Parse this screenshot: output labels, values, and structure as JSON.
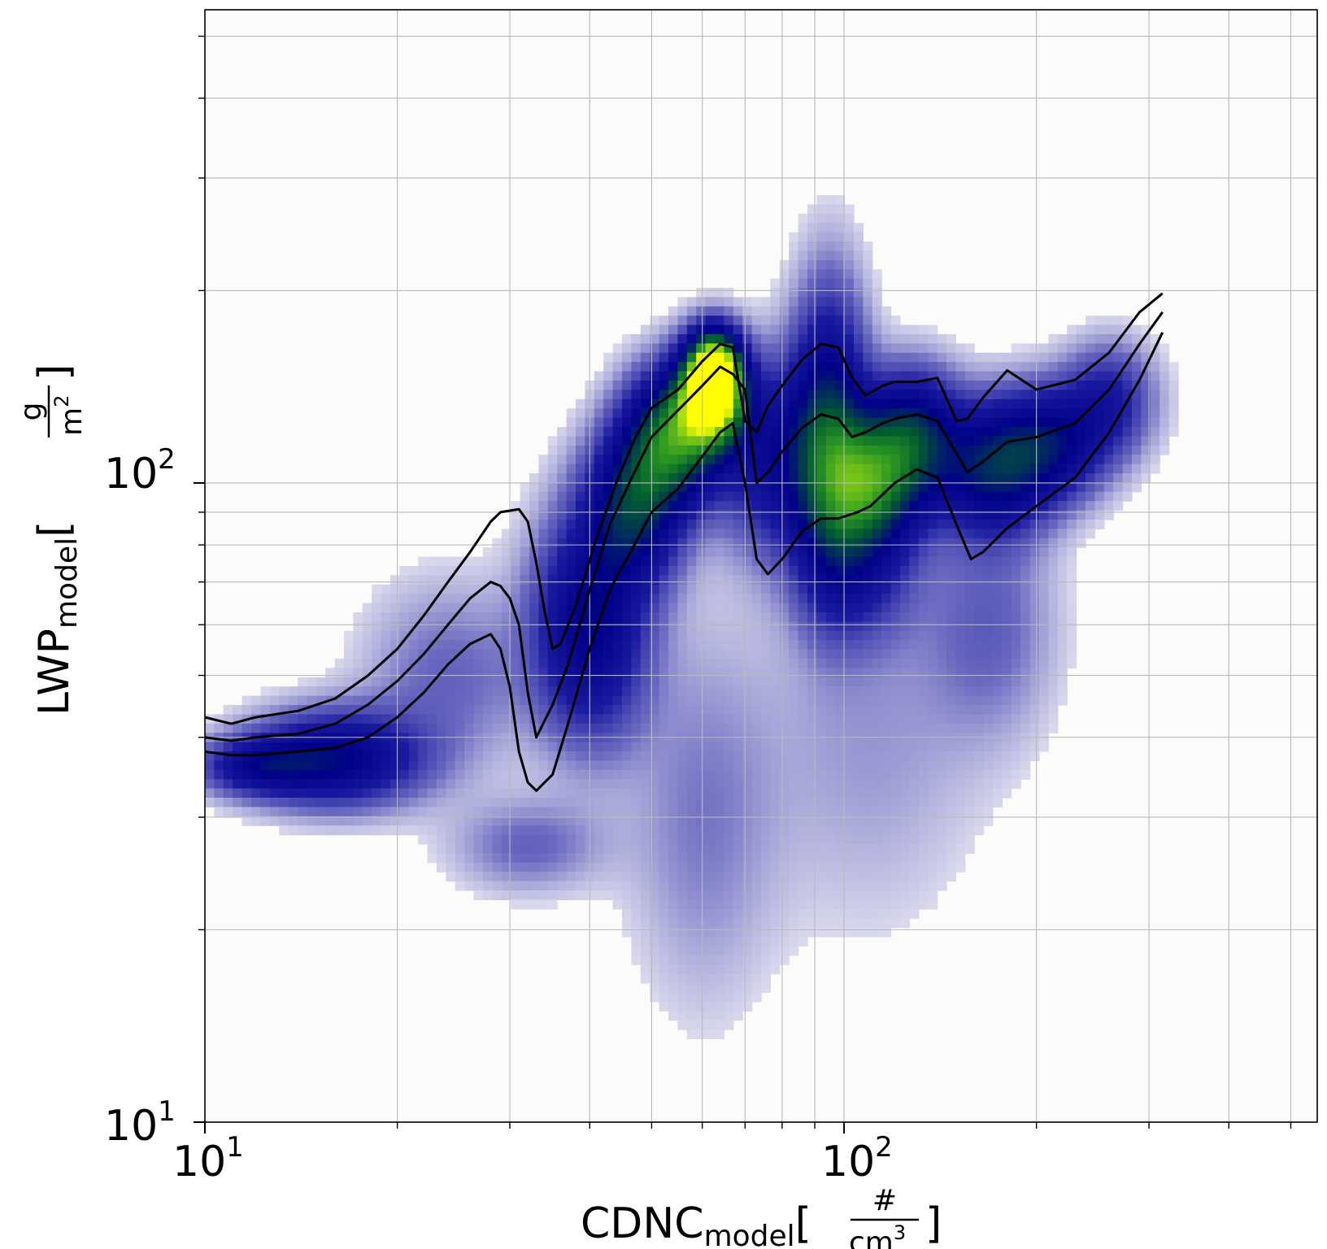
{
  "chart_data": {
    "type": "heatmap",
    "title": "",
    "xlabel": {
      "base": "CDNC",
      "subscript": "model",
      "unit_numerator": "#",
      "unit_denominator": "cm",
      "unit_denominator_exp": "3"
    },
    "ylabel": {
      "base": "LWP",
      "subscript": "model",
      "unit_numerator": "g",
      "unit_denominator": "m",
      "unit_denominator_exp": "2"
    },
    "x_scale": "log",
    "y_scale": "log",
    "xlim": [
      10,
      550
    ],
    "ylim": [
      10,
      550
    ],
    "grid": true,
    "x_ticks": [
      {
        "value": 10,
        "base": "10",
        "exp": "1"
      },
      {
        "value": 100,
        "base": "10",
        "exp": "2"
      }
    ],
    "y_ticks": [
      {
        "value": 10,
        "base": "10",
        "exp": "1"
      },
      {
        "value": 100,
        "base": "10",
        "exp": "2"
      }
    ],
    "colormap": [
      "#fdfafa",
      "#c8c8e6",
      "#6a6ac0",
      "#1a1aa0",
      "#000088",
      "#005a30",
      "#2e9a22",
      "#8ccf14",
      "#ffff00"
    ],
    "density_blobs": [
      {
        "x": 16,
        "y": 37,
        "sx": 0.09,
        "sy": 0.05,
        "w": 0.9
      },
      {
        "x": 12,
        "y": 36,
        "sx": 0.06,
        "sy": 0.03,
        "w": 0.6
      },
      {
        "x": 24,
        "y": 50,
        "sx": 0.09,
        "sy": 0.1,
        "w": 0.25
      },
      {
        "x": 40,
        "y": 60,
        "sx": 0.06,
        "sy": 0.12,
        "w": 0.9
      },
      {
        "x": 47,
        "y": 92,
        "sx": 0.05,
        "sy": 0.08,
        "w": 1.0
      },
      {
        "x": 54,
        "y": 118,
        "sx": 0.05,
        "sy": 0.07,
        "w": 1.4
      },
      {
        "x": 62,
        "y": 138,
        "sx": 0.035,
        "sy": 0.055,
        "w": 2.2
      },
      {
        "x": 63,
        "y": 150,
        "sx": 0.025,
        "sy": 0.04,
        "w": 1.5
      },
      {
        "x": 78,
        "y": 110,
        "sx": 0.06,
        "sy": 0.1,
        "w": 0.7
      },
      {
        "x": 95,
        "y": 120,
        "sx": 0.04,
        "sy": 0.15,
        "w": 1.0
      },
      {
        "x": 110,
        "y": 100,
        "sx": 0.05,
        "sy": 0.07,
        "w": 1.2
      },
      {
        "x": 128,
        "y": 118,
        "sx": 0.05,
        "sy": 0.07,
        "w": 1.0
      },
      {
        "x": 105,
        "y": 75,
        "sx": 0.06,
        "sy": 0.08,
        "w": 0.5
      },
      {
        "x": 170,
        "y": 105,
        "sx": 0.06,
        "sy": 0.07,
        "w": 0.9
      },
      {
        "x": 210,
        "y": 115,
        "sx": 0.06,
        "sy": 0.06,
        "w": 0.8
      },
      {
        "x": 260,
        "y": 135,
        "sx": 0.05,
        "sy": 0.06,
        "w": 0.5
      },
      {
        "x": 32,
        "y": 27,
        "sx": 0.08,
        "sy": 0.05,
        "w": 0.25
      },
      {
        "x": 60,
        "y": 30,
        "sx": 0.08,
        "sy": 0.2,
        "w": 0.2
      },
      {
        "x": 110,
        "y": 40,
        "sx": 0.12,
        "sy": 0.2,
        "w": 0.15
      },
      {
        "x": 170,
        "y": 60,
        "sx": 0.07,
        "sy": 0.12,
        "w": 0.25
      }
    ],
    "series": [
      {
        "x": [
          10,
          11,
          12,
          14,
          16,
          18,
          20,
          22,
          24,
          26,
          28,
          29,
          31,
          32,
          33,
          34,
          35,
          36,
          38,
          41,
          44,
          47,
          50,
          55,
          60,
          64,
          67,
          70,
          73,
          76,
          80,
          86,
          92,
          98,
          103,
          108,
          115,
          120,
          130,
          140,
          150,
          156,
          165,
          180,
          200,
          230,
          260,
          290,
          315
        ],
        "y": [
          43,
          42,
          43,
          44,
          46,
          50,
          55,
          62,
          70,
          78,
          87,
          90,
          91,
          87,
          75,
          63,
          55,
          56,
          64,
          82,
          100,
          117,
          131,
          140,
          155,
          165,
          163,
          125,
          120,
          132,
          142,
          156,
          165,
          163,
          146,
          137,
          142,
          144,
          144,
          146,
          125,
          126,
          136,
          150,
          140,
          145,
          160,
          185,
          198
        ]
      },
      {
        "x": [
          10,
          11,
          12,
          14,
          16,
          18,
          20,
          22,
          24,
          26,
          28,
          29,
          30,
          31,
          32,
          33,
          35,
          37,
          40,
          43,
          47,
          50,
          55,
          60,
          64,
          67,
          70,
          73,
          76,
          80,
          86,
          92,
          98,
          103,
          108,
          115,
          120,
          130,
          140,
          156,
          165,
          180,
          200,
          230,
          260,
          290,
          315
        ],
        "y": [
          40,
          39.5,
          40,
          40.5,
          42,
          45,
          49,
          54,
          60,
          66,
          70,
          69,
          66,
          60,
          47,
          40,
          45,
          52,
          68,
          86,
          104,
          118,
          130,
          142,
          152,
          148,
          140,
          100,
          104,
          112,
          122,
          128,
          126,
          118,
          120,
          124,
          126,
          128,
          125,
          104,
          108,
          116,
          118,
          124,
          140,
          165,
          185
        ]
      },
      {
        "x": [
          10,
          11,
          12,
          14,
          16,
          18,
          20,
          22,
          24,
          26,
          28,
          29,
          30,
          31,
          32,
          33,
          35,
          37,
          40,
          43,
          47,
          50,
          55,
          60,
          64,
          67,
          70,
          73,
          76,
          80,
          86,
          92,
          98,
          105,
          110,
          120,
          130,
          140,
          150,
          158,
          165,
          180,
          200,
          230,
          260,
          290,
          315
        ],
        "y": [
          38,
          37.5,
          37.5,
          38,
          38.5,
          40,
          43,
          47,
          52,
          56,
          58,
          55,
          48,
          38,
          34,
          33,
          35,
          42,
          55,
          68,
          80,
          90,
          98,
          110,
          120,
          124,
          100,
          76,
          72,
          76,
          84,
          88,
          88,
          90,
          92,
          100,
          105,
          102,
          86,
          76,
          78,
          85,
          92,
          102,
          120,
          145,
          172
        ]
      }
    ]
  }
}
